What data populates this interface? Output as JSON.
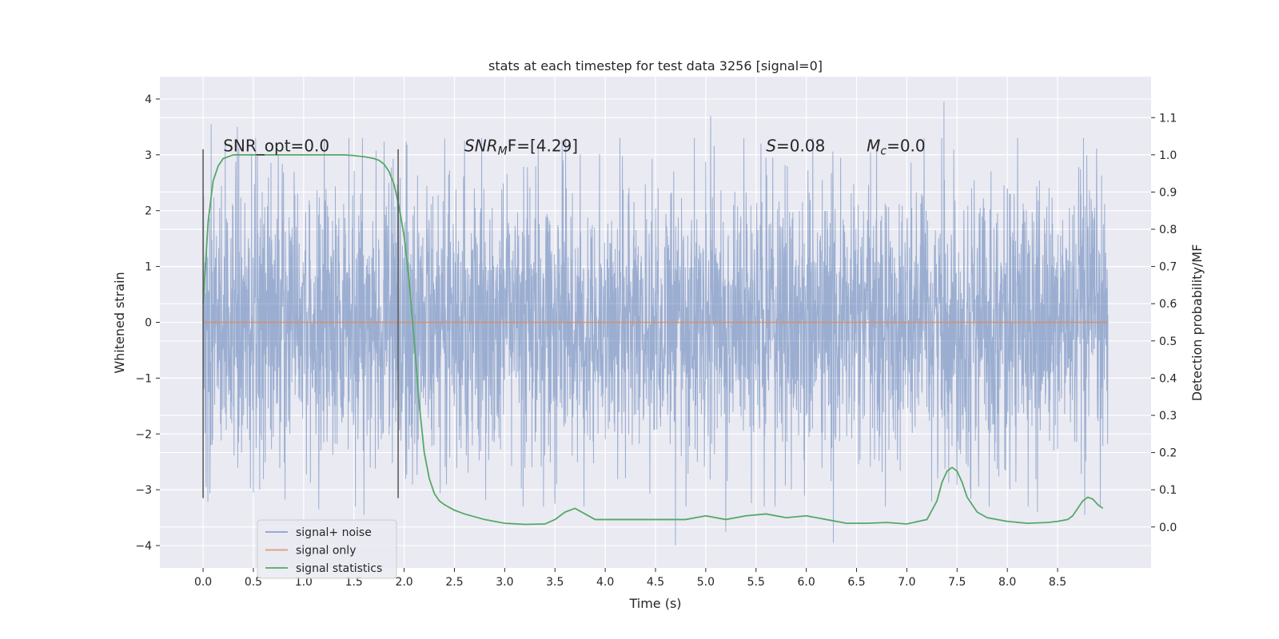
{
  "chart_data": {
    "type": "line",
    "title": "stats at each timestep for test data 3256 [signal=0]",
    "xlabel": "Time (s)",
    "ylabel": "Whitened strain",
    "y2label": "Detection probability/MF",
    "xlim": [
      -0.43,
      9.43
    ],
    "ylim": [
      -4.4,
      4.4
    ],
    "y2lim": [
      -0.11,
      1.21
    ],
    "xticks": [
      0.0,
      0.5,
      1.0,
      1.5,
      2.0,
      2.5,
      3.0,
      3.5,
      4.0,
      4.5,
      5.0,
      5.5,
      6.0,
      6.5,
      7.0,
      7.5,
      8.0,
      8.5
    ],
    "xtick_labels": [
      "0.0",
      "0.5",
      "1.0",
      "1.5",
      "2.0",
      "2.5",
      "3.0",
      "3.5",
      "4.0",
      "4.5",
      "5.0",
      "5.5",
      "6.0",
      "6.5",
      "7.0",
      "7.5",
      "8.0",
      "8.5"
    ],
    "yticks": [
      -4,
      -3,
      -2,
      -1,
      0,
      1,
      2,
      3,
      4
    ],
    "ytick_labels": [
      "−4",
      "−3",
      "−2",
      "−1",
      "0",
      "1",
      "2",
      "3",
      "4"
    ],
    "y2ticks": [
      0.0,
      0.1,
      0.2,
      0.3,
      0.4,
      0.5,
      0.6,
      0.7,
      0.8,
      0.9,
      1.0,
      1.1
    ],
    "y2tick_labels": [
      "0.0",
      "0.1",
      "0.2",
      "0.3",
      "0.4",
      "0.5",
      "0.6",
      "0.7",
      "0.8",
      "0.9",
      "1.0",
      "1.1"
    ],
    "grid": true,
    "background": "#eaeaf2",
    "vlines": [
      {
        "x": 0.0,
        "ymin": -3.15,
        "ymax": 3.1
      },
      {
        "x": 1.94,
        "ymin": -3.15,
        "ymax": 3.1
      }
    ],
    "series": [
      {
        "name": "signal+ noise",
        "color": "#4c72b0",
        "axis": "left",
        "kind": "noise",
        "x_range": [
          0.0,
          9.0
        ],
        "typical_amplitude": 1.3,
        "peaks": [
          {
            "x": 0.08,
            "y": 3.55
          },
          {
            "x": 0.34,
            "y": 3.5
          },
          {
            "x": 0.03,
            "y": -2.95
          },
          {
            "x": 0.5,
            "y": -3.05
          },
          {
            "x": 1.15,
            "y": -3.35
          },
          {
            "x": 1.6,
            "y": -3.45
          },
          {
            "x": 2.6,
            "y": 3.25
          },
          {
            "x": 3.5,
            "y": -3.25
          },
          {
            "x": 5.05,
            "y": 3.7
          },
          {
            "x": 4.7,
            "y": -4.0
          },
          {
            "x": 5.2,
            "y": -3.75
          },
          {
            "x": 6.27,
            "y": -3.95
          },
          {
            "x": 7.37,
            "y": 3.95
          },
          {
            "x": 8.77,
            "y": -3.45
          },
          {
            "x": 8.3,
            "y": -3.4
          },
          {
            "x": 5.55,
            "y": 3.2
          },
          {
            "x": 1.45,
            "y": 3.3
          },
          {
            "x": 0.22,
            "y": 3.2
          }
        ]
      },
      {
        "name": "signal only",
        "color": "#dd8452",
        "axis": "left",
        "x": [
          0.0,
          9.0
        ],
        "y": [
          0.0,
          0.0
        ]
      },
      {
        "name": "signal statistics",
        "color": "#55a868",
        "axis": "right",
        "x": [
          0.0,
          0.05,
          0.1,
          0.15,
          0.2,
          0.25,
          0.3,
          0.4,
          0.6,
          0.8,
          1.0,
          1.2,
          1.4,
          1.5,
          1.6,
          1.7,
          1.75,
          1.8,
          1.85,
          1.9,
          1.95,
          2.0,
          2.05,
          2.1,
          2.15,
          2.2,
          2.25,
          2.3,
          2.35,
          2.4,
          2.5,
          2.6,
          2.8,
          3.0,
          3.2,
          3.4,
          3.5,
          3.6,
          3.7,
          3.8,
          3.9,
          4.0,
          4.2,
          4.4,
          4.6,
          4.8,
          5.0,
          5.2,
          5.4,
          5.6,
          5.8,
          6.0,
          6.2,
          6.4,
          6.6,
          6.8,
          7.0,
          7.2,
          7.3,
          7.35,
          7.4,
          7.45,
          7.5,
          7.55,
          7.6,
          7.7,
          7.8,
          8.0,
          8.2,
          8.4,
          8.5,
          8.6,
          8.65,
          8.7,
          8.75,
          8.8,
          8.85,
          8.9,
          8.95
        ],
        "y": [
          0.6,
          0.82,
          0.93,
          0.97,
          0.99,
          0.995,
          1.0,
          1.0,
          1.0,
          1.0,
          1.0,
          1.0,
          1.0,
          0.998,
          0.995,
          0.99,
          0.985,
          0.975,
          0.955,
          0.92,
          0.86,
          0.78,
          0.66,
          0.5,
          0.33,
          0.2,
          0.13,
          0.09,
          0.07,
          0.06,
          0.045,
          0.035,
          0.02,
          0.01,
          0.007,
          0.008,
          0.02,
          0.04,
          0.05,
          0.035,
          0.02,
          0.02,
          0.02,
          0.02,
          0.02,
          0.02,
          0.03,
          0.02,
          0.03,
          0.035,
          0.025,
          0.03,
          0.02,
          0.01,
          0.01,
          0.012,
          0.008,
          0.02,
          0.07,
          0.12,
          0.15,
          0.16,
          0.15,
          0.12,
          0.08,
          0.04,
          0.025,
          0.015,
          0.01,
          0.012,
          0.015,
          0.02,
          0.03,
          0.05,
          0.07,
          0.08,
          0.075,
          0.06,
          0.05
        ]
      }
    ],
    "annotations": [
      {
        "text": "SNR_opt=0.0",
        "x": 0.2,
        "y": 3.05,
        "style": "normal"
      },
      {
        "text": "F=[4.29]",
        "prefix_base": "SNR",
        "prefix_sub": "M",
        "x": 2.6,
        "y": 3.05,
        "style": "italic-prefix"
      },
      {
        "text": "=0.08",
        "prefix_base": "S",
        "prefix_sub": "",
        "x": 5.6,
        "y": 3.05,
        "style": "italic-prefix"
      },
      {
        "text": "=0.0",
        "prefix_base": "M",
        "prefix_sub": "c",
        "x": 6.6,
        "y": 3.05,
        "style": "italic-prefix"
      }
    ],
    "legend": {
      "placement": "lower-left",
      "entries": [
        "signal+ noise",
        "signal only",
        "signal statistics"
      ]
    }
  }
}
